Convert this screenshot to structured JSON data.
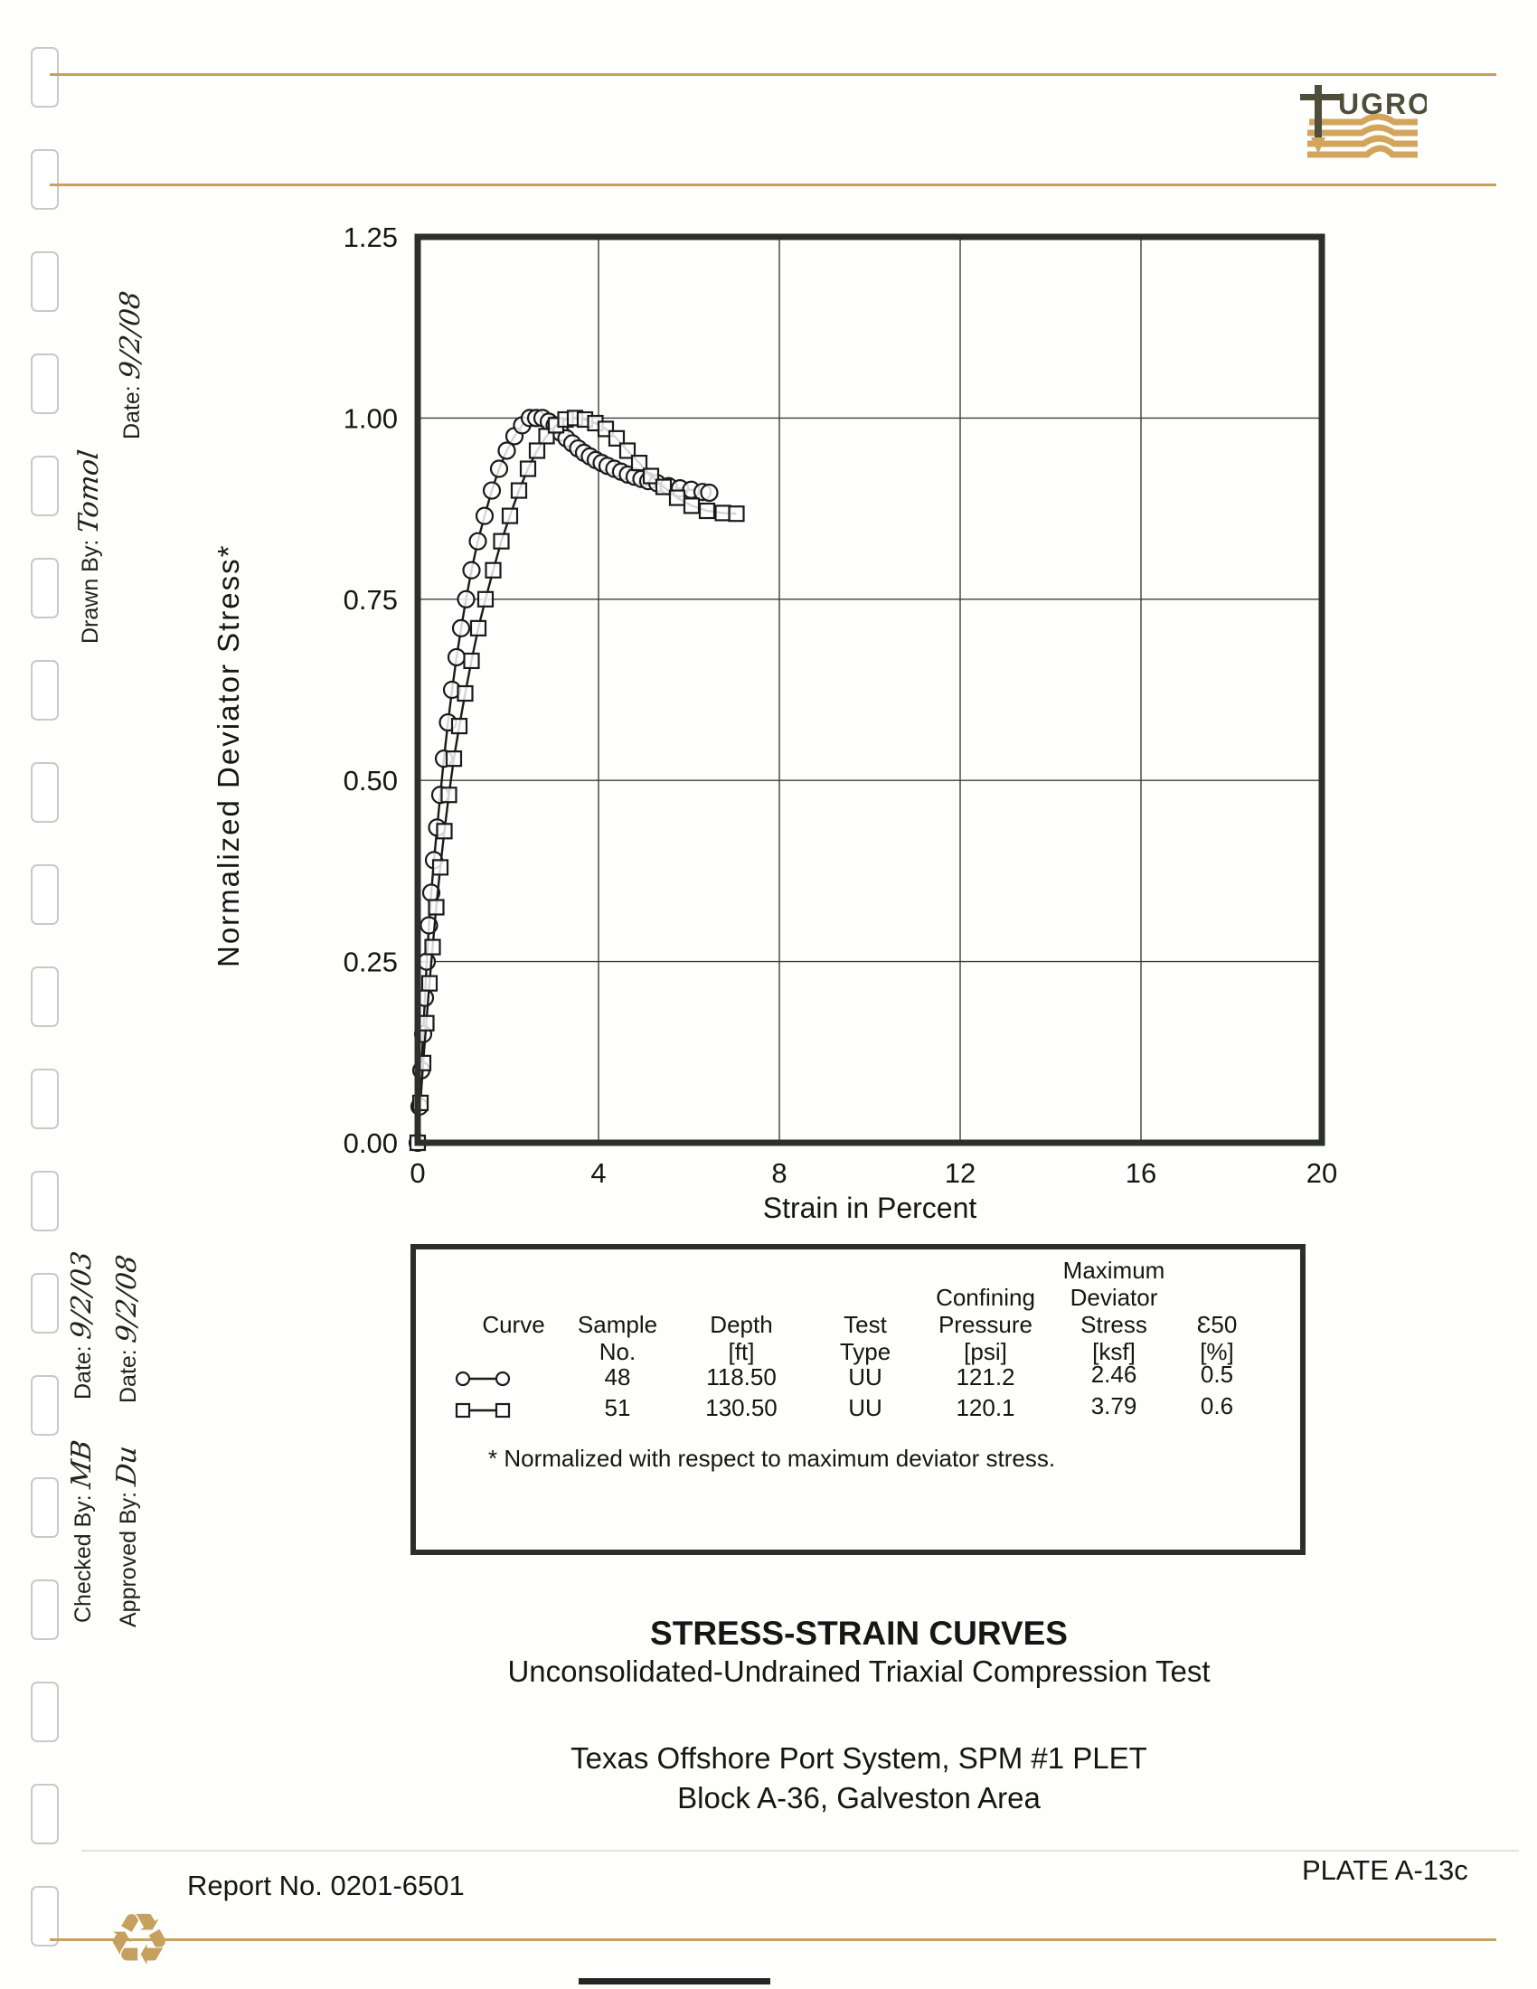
{
  "logo": {
    "text": "UGRO"
  },
  "margin": {
    "drawn_date_label": "Date:",
    "drawn_date_value": "9/2/08",
    "drawn_by_label": "Drawn By:",
    "drawn_by_value": "Tomol",
    "checked_date_label": "Date:",
    "checked_date_value": "9/2/03",
    "approved_date_label": "Date:",
    "approved_date_value": "9/2/08",
    "checked_by_label": "Checked By:",
    "checked_by_value": "MB",
    "approved_by_label": "Approved By:",
    "approved_by_value": "Du"
  },
  "chart_data": {
    "type": "line",
    "title": "",
    "xlabel": "Strain in Percent",
    "ylabel": "Normalized Deviator Stress*",
    "xlim": [
      0,
      20
    ],
    "ylim": [
      0,
      1.25
    ],
    "grid": true,
    "x_ticks": [
      0,
      4,
      8,
      12,
      16,
      20
    ],
    "x_tick_labels": [
      "0",
      "4",
      "8",
      "12",
      "16",
      "20"
    ],
    "y_ticks": [
      0.0,
      0.25,
      0.5,
      0.75,
      1.0,
      1.25
    ],
    "y_tick_labels": [
      "0.00",
      "0.25",
      "0.50",
      "0.75",
      "1.00",
      "1.25"
    ],
    "legend_position": "table-below",
    "series": [
      {
        "name": "Sample 48",
        "marker": "circle",
        "points": [
          [
            0,
            0
          ],
          [
            0.04,
            0.05
          ],
          [
            0.08,
            0.1
          ],
          [
            0.12,
            0.15
          ],
          [
            0.16,
            0.2
          ],
          [
            0.2,
            0.25
          ],
          [
            0.25,
            0.3
          ],
          [
            0.3,
            0.345
          ],
          [
            0.36,
            0.39
          ],
          [
            0.43,
            0.435
          ],
          [
            0.5,
            0.48
          ],
          [
            0.58,
            0.53
          ],
          [
            0.67,
            0.58
          ],
          [
            0.76,
            0.625
          ],
          [
            0.86,
            0.67
          ],
          [
            0.96,
            0.71
          ],
          [
            1.07,
            0.75
          ],
          [
            1.19,
            0.79
          ],
          [
            1.33,
            0.83
          ],
          [
            1.48,
            0.865
          ],
          [
            1.64,
            0.9
          ],
          [
            1.8,
            0.93
          ],
          [
            1.97,
            0.955
          ],
          [
            2.14,
            0.975
          ],
          [
            2.31,
            0.99
          ],
          [
            2.48,
            1.0
          ],
          [
            2.62,
            1.0
          ],
          [
            2.76,
            1.0
          ],
          [
            2.9,
            0.995
          ],
          [
            3.03,
            0.99
          ],
          [
            3.16,
            0.98
          ],
          [
            3.29,
            0.972
          ],
          [
            3.42,
            0.965
          ],
          [
            3.55,
            0.958
          ],
          [
            3.68,
            0.952
          ],
          [
            3.81,
            0.947
          ],
          [
            3.94,
            0.942
          ],
          [
            4.07,
            0.938
          ],
          [
            4.2,
            0.934
          ],
          [
            4.35,
            0.93
          ],
          [
            4.5,
            0.926
          ],
          [
            4.65,
            0.922
          ],
          [
            4.8,
            0.919
          ],
          [
            4.95,
            0.916
          ],
          [
            5.1,
            0.913
          ],
          [
            5.3,
            0.91
          ],
          [
            5.55,
            0.906
          ],
          [
            5.8,
            0.903
          ],
          [
            6.05,
            0.901
          ],
          [
            6.3,
            0.898
          ],
          [
            6.45,
            0.897
          ]
        ]
      },
      {
        "name": "Sample 51",
        "marker": "square",
        "points": [
          [
            0,
            0
          ],
          [
            0.06,
            0.055
          ],
          [
            0.12,
            0.11
          ],
          [
            0.19,
            0.165
          ],
          [
            0.26,
            0.22
          ],
          [
            0.33,
            0.27
          ],
          [
            0.41,
            0.325
          ],
          [
            0.5,
            0.38
          ],
          [
            0.59,
            0.43
          ],
          [
            0.69,
            0.48
          ],
          [
            0.8,
            0.53
          ],
          [
            0.92,
            0.575
          ],
          [
            1.05,
            0.62
          ],
          [
            1.19,
            0.665
          ],
          [
            1.34,
            0.71
          ],
          [
            1.5,
            0.75
          ],
          [
            1.67,
            0.79
          ],
          [
            1.85,
            0.83
          ],
          [
            2.04,
            0.865
          ],
          [
            2.24,
            0.9
          ],
          [
            2.44,
            0.93
          ],
          [
            2.64,
            0.955
          ],
          [
            2.85,
            0.975
          ],
          [
            3.06,
            0.99
          ],
          [
            3.27,
            0.998
          ],
          [
            3.48,
            1.0
          ],
          [
            3.7,
            0.998
          ],
          [
            3.93,
            0.993
          ],
          [
            4.16,
            0.985
          ],
          [
            4.4,
            0.972
          ],
          [
            4.64,
            0.955
          ],
          [
            4.9,
            0.938
          ],
          [
            5.16,
            0.92
          ],
          [
            5.44,
            0.905
          ],
          [
            5.74,
            0.89
          ],
          [
            6.06,
            0.879
          ],
          [
            6.4,
            0.872
          ],
          [
            6.75,
            0.869
          ],
          [
            7.05,
            0.868
          ]
        ]
      }
    ]
  },
  "legend_table": {
    "headers": [
      {
        "text": "Curve"
      },
      {
        "text": "Sample\nNo."
      },
      {
        "text": "Depth\n[ft]"
      },
      {
        "text": "Test\nType"
      },
      {
        "text": "Confining\nPressure\n[psi]"
      },
      {
        "text": "Maximum\nDeviator\nStress\n[ksf]"
      },
      {
        "text": "Ɛ50\n[%]"
      }
    ],
    "rows": [
      {
        "curve_marker": "circle",
        "sample_no": "48",
        "depth": "118.50",
        "test_type": "UU",
        "confining_pressure": "121.2",
        "max_deviator_stress": "2.46",
        "e50": "0.5"
      },
      {
        "curve_marker": "square",
        "sample_no": "51",
        "depth": "130.50",
        "test_type": "UU",
        "confining_pressure": "120.1",
        "max_deviator_stress": "3.79",
        "e50": "0.6"
      }
    ],
    "footnote": "* Normalized with respect to maximum deviator stress."
  },
  "titles": {
    "title1": "STRESS-STRAIN CURVES",
    "title2": "Unconsolidated-Undrained Triaxial Compression Test",
    "title3": "Texas Offshore Port System, SPM #1 PLET",
    "title4": "Block A-36, Galveston Area"
  },
  "footer": {
    "report_no": "Report No. 0201-6501",
    "plate": "PLATE A-13c"
  }
}
